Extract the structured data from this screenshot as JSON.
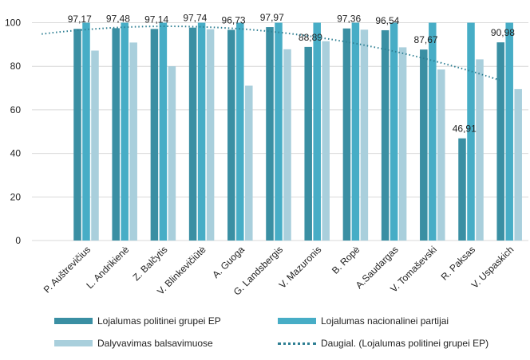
{
  "chart_data": {
    "type": "bar",
    "categories": [
      "P. Auštrevičius",
      "L. Andrikienė",
      "Z. Balčytis",
      "V. Blinkevičiūtė",
      "A. Guoga",
      "G. Landsbergis",
      "V. Mazuronis",
      "B. Ropė",
      "A.Saudargas",
      "V. Tomaševski",
      "R. Paksas",
      "V. Uspaskich"
    ],
    "series": [
      {
        "name": "Lojalumas politinei grupei EP",
        "color": "#3a8fa3",
        "values": [
          97.17,
          97.48,
          97.14,
          97.74,
          96.73,
          97.97,
          88.89,
          97.36,
          96.54,
          87.67,
          46.91,
          90.98
        ],
        "labels": [
          "97,17",
          "97,48",
          "97,14",
          "97,74",
          "96,73",
          "97,97",
          "88,89",
          "97,36",
          "96,54",
          "87,67",
          "46,91",
          "90,98"
        ]
      },
      {
        "name": "Lojalumas nacionalinei partijai",
        "color": "#47adc6",
        "values": [
          100,
          100,
          100,
          100,
          100,
          100,
          100,
          100,
          100,
          100,
          100,
          100
        ]
      },
      {
        "name": "Dalyvavimas balsavimuose",
        "color": "#a9cfdc",
        "values": [
          87.2,
          90.9,
          80,
          97,
          71.1,
          87.8,
          91.5,
          96.8,
          88.7,
          78.5,
          83.2,
          69.5
        ]
      }
    ],
    "trendline": {
      "name": "Daugial. (Lojalumas politinei grupei EP)",
      "type": "polynomial",
      "of_series": 0,
      "color": "#2e7f93"
    },
    "yticks": [
      "0",
      "20",
      "40",
      "60",
      "80",
      "100"
    ],
    "ylim": [
      0,
      100
    ],
    "grid": true,
    "legend": "bottom"
  }
}
